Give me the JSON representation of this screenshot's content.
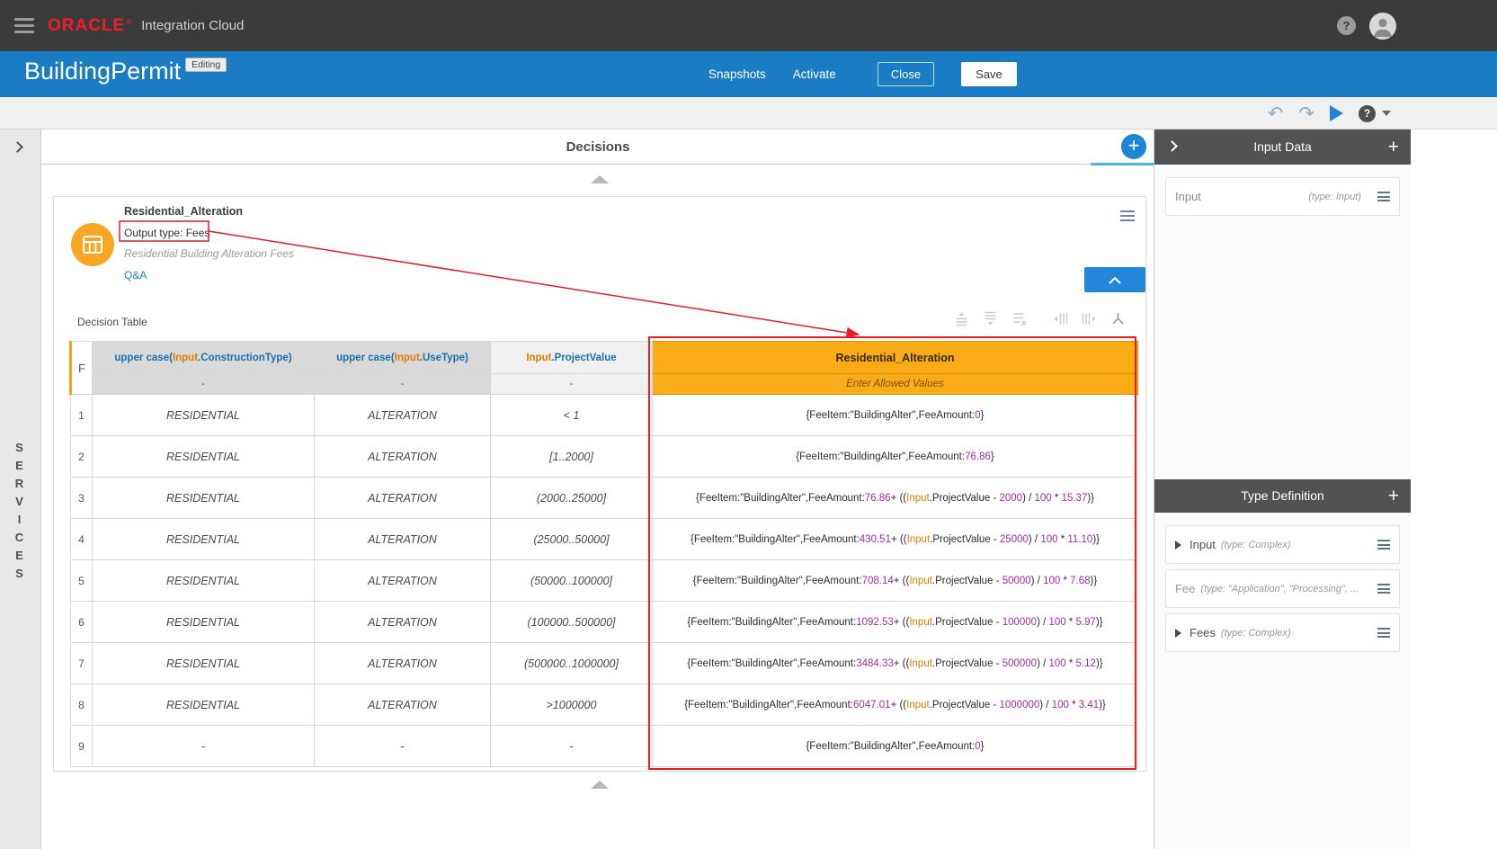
{
  "topbar": {
    "brand": "ORACLE",
    "reg_mark": "®",
    "product": "Integration Cloud"
  },
  "icons": {
    "plus": "+",
    "help": "?",
    "undo": "↶",
    "redo": "↷"
  },
  "header": {
    "title": "BuildingPermit",
    "badge": "Editing",
    "snapshots_label": "Snapshots",
    "activate_label": "Activate",
    "close_label": "Close",
    "save_label": "Save"
  },
  "canvas": {
    "title": "Decisions"
  },
  "left_rail": {
    "label": "SERVICES"
  },
  "decision": {
    "name": "Residential_Alteration",
    "output_type": "Output type: Fees",
    "description": "Residential Building Alteration Fees",
    "qa_label": "Q&A",
    "table_label": "Decision Table"
  },
  "decision_table": {
    "hit_policy": "F",
    "columns": [
      {
        "header": "upper case(Input.ConstructionType)",
        "sub": "-"
      },
      {
        "header": "upper case(Input.UseType)",
        "sub": "-"
      },
      {
        "header": "Input.ProjectValue",
        "sub": "-"
      },
      {
        "header": "Residential_Alteration",
        "sub": "Enter Allowed Values"
      }
    ],
    "rows": [
      {
        "n": "1",
        "c1": "RESIDENTIAL",
        "c2": "ALTERATION",
        "c3": "< 1",
        "c4": "{FeeItem:\"BuildingAlter\",FeeAmount:0}"
      },
      {
        "n": "2",
        "c1": "RESIDENTIAL",
        "c2": "ALTERATION",
        "c3": "[1..2000]",
        "c4": "{FeeItem:\"BuildingAlter\",FeeAmount:76.86}"
      },
      {
        "n": "3",
        "c1": "RESIDENTIAL",
        "c2": "ALTERATION",
        "c3": "(2000..25000]",
        "c4": "{FeeItem:\"BuildingAlter\",FeeAmount:76.86+ ((Input.ProjectValue - 2000) / 100 * 15.37)}"
      },
      {
        "n": "4",
        "c1": "RESIDENTIAL",
        "c2": "ALTERATION",
        "c3": "(25000..50000]",
        "c4": "{FeeItem:\"BuildingAlter\",FeeAmount:430.51+ ((Input.ProjectValue - 25000) / 100 * 11.10)}"
      },
      {
        "n": "5",
        "c1": "RESIDENTIAL",
        "c2": "ALTERATION",
        "c3": "(50000..100000]",
        "c4": "{FeeItem:\"BuildingAlter\",FeeAmount:708.14+ ((Input.ProjectValue - 50000) / 100 * 7.68)}"
      },
      {
        "n": "6",
        "c1": "RESIDENTIAL",
        "c2": "ALTERATION",
        "c3": "(100000..500000]",
        "c4": "{FeeItem:\"BuildingAlter\",FeeAmount:1092.53+ ((Input.ProjectValue - 100000) / 100 * 5.97)}"
      },
      {
        "n": "7",
        "c1": "RESIDENTIAL",
        "c2": "ALTERATION",
        "c3": "(500000..1000000]",
        "c4": "{FeeItem:\"BuildingAlter\",FeeAmount:3484.33+ ((Input.ProjectValue - 500000) / 100 * 5.12)}"
      },
      {
        "n": "8",
        "c1": "RESIDENTIAL",
        "c2": "ALTERATION",
        "c3": ">1000000",
        "c4": "{FeeItem:\"BuildingAlter\",FeeAmount:6047.01+ ((Input.ProjectValue - 1000000) / 100 * 3.41)}"
      },
      {
        "n": "9",
        "c1": "-",
        "c2": "-",
        "c3": "-",
        "c4": "{FeeItem:\"BuildingAlter\",FeeAmount:0}"
      }
    ]
  },
  "right_panel": {
    "input_data": {
      "title": "Input Data",
      "items": [
        {
          "label": "Input",
          "type": "(type: Input)"
        }
      ]
    },
    "type_definition": {
      "title": "Type Definition",
      "items": [
        {
          "label": "Input",
          "type": "(type: Complex)",
          "expandable": true
        },
        {
          "label": "Fee",
          "type": "(type: \"Application\", \"Processing\", ...",
          "muted": true
        },
        {
          "label": "Fees",
          "type": "(type: Complex)",
          "expandable": true
        }
      ]
    }
  },
  "colors": {
    "topbar_gray": "#3b3b3b",
    "header_blue": "#1a7cc2",
    "accent_blue": "#1f86d6",
    "gold": "#f9ac18",
    "annotation_red": "#eb1c24",
    "token_orange": "#e07c00",
    "token_purple": "#a52ca5"
  }
}
